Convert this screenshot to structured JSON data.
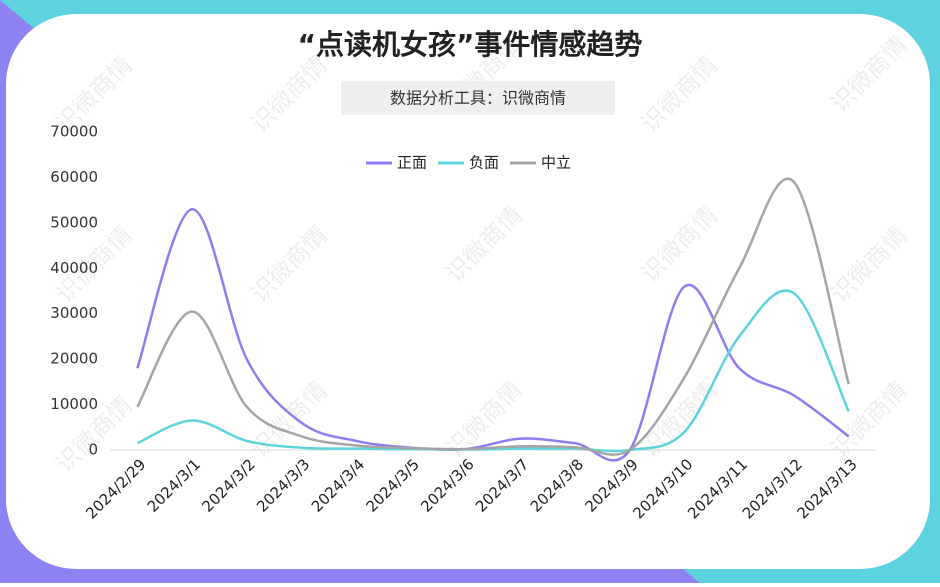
{
  "chart_data": {
    "type": "line",
    "title": "“点读机女孩”事件情感趋势",
    "subtitle": "数据分析工具：识微商情",
    "watermark": "识微商情",
    "categories": [
      "2024/2/29",
      "2024/3/1",
      "2024/3/2",
      "2024/3/3",
      "2024/3/4",
      "2024/3/5",
      "2024/3/6",
      "2024/3/7",
      "2024/3/8",
      "2024/3/9",
      "2024/3/10",
      "2024/3/11",
      "2024/3/12",
      "2024/3/13"
    ],
    "series": [
      {
        "name": "正面",
        "color": "#8e7cf0",
        "values": [
          18000,
          53000,
          20000,
          6000,
          2000,
          500,
          200,
          2500,
          1500,
          0,
          36000,
          18000,
          12000,
          3000
        ]
      },
      {
        "name": "负面",
        "color": "#5dd3dc",
        "values": [
          1500,
          6500,
          2000,
          500,
          300,
          200,
          100,
          300,
          300,
          0,
          4000,
          25000,
          34500,
          8500
        ]
      },
      {
        "name": "中立",
        "color": "#a5a5a5",
        "values": [
          9500,
          30500,
          9500,
          3000,
          1000,
          400,
          200,
          800,
          600,
          0,
          16000,
          40000,
          59000,
          14500
        ]
      }
    ],
    "ylim": [
      0,
      70000
    ],
    "yticks": [
      0,
      10000,
      20000,
      30000,
      40000,
      50000,
      60000,
      70000
    ],
    "grid": false,
    "legend": "top"
  }
}
